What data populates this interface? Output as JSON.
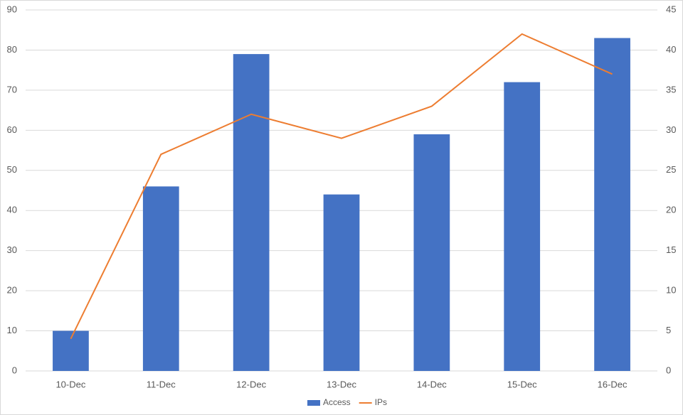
{
  "chart_data": {
    "type": "combo",
    "categories": [
      "10-Dec",
      "11-Dec",
      "12-Dec",
      "13-Dec",
      "14-Dec",
      "15-Dec",
      "16-Dec"
    ],
    "series": [
      {
        "name": "Access",
        "type": "bar",
        "color": "#4472c4",
        "values": [
          10,
          46,
          79,
          44,
          59,
          72,
          83
        ]
      },
      {
        "name": "IPs",
        "type": "line",
        "axis": "y2",
        "color": "#ed7d31",
        "values": [
          4,
          27,
          32,
          29,
          33,
          42,
          37
        ]
      }
    ],
    "ylim": [
      0,
      90
    ],
    "yticks": [
      0,
      10,
      20,
      30,
      40,
      50,
      60,
      70,
      80,
      90
    ],
    "y2lim": [
      0,
      45
    ],
    "y2ticks": [
      0,
      5,
      10,
      15,
      20,
      25,
      30,
      35,
      40,
      45
    ],
    "grid": true,
    "legend": "bottom"
  }
}
